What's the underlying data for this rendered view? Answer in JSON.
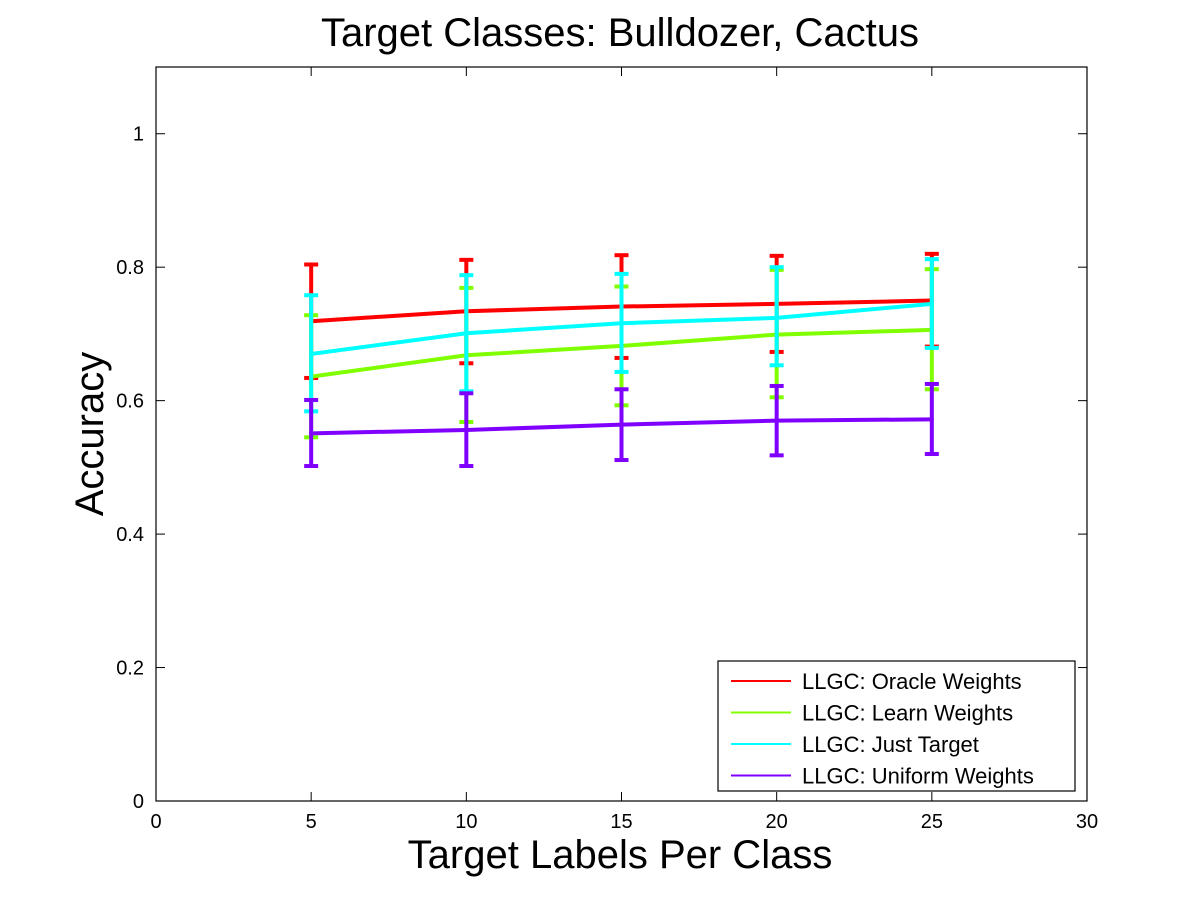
{
  "chart_data": {
    "type": "line",
    "title": "Target Classes: Bulldozer, Cactus",
    "xlabel": "Target Labels Per Class",
    "ylabel": "Accuracy",
    "xlim": [
      0,
      30
    ],
    "ylim": [
      0,
      1.1
    ],
    "xticks": [
      0,
      5,
      10,
      15,
      20,
      25,
      30
    ],
    "xtick_labels": [
      "0",
      "5",
      "10",
      "15",
      "20",
      "25",
      "30"
    ],
    "yticks": [
      0,
      0.2,
      0.4,
      0.6,
      0.8,
      1
    ],
    "ytick_labels": [
      "0",
      "0.2",
      "0.4",
      "0.6",
      "0.8",
      "1"
    ],
    "grid": false,
    "legend_position": "bottom-right",
    "x": [
      5,
      10,
      15,
      20,
      25
    ],
    "series": [
      {
        "name": "LLGC: Oracle Weights",
        "color": "#ff0000",
        "values": [
          0.719,
          0.734,
          0.741,
          0.745,
          0.75
        ],
        "err_low": [
          0.634,
          0.656,
          0.664,
          0.673,
          0.681
        ],
        "err_high": [
          0.804,
          0.811,
          0.818,
          0.817,
          0.82
        ]
      },
      {
        "name": "LLGC: Learn Weights",
        "color": "#80ff00",
        "values": [
          0.636,
          0.668,
          0.682,
          0.699,
          0.706
        ],
        "err_low": [
          0.545,
          0.568,
          0.593,
          0.605,
          0.617
        ],
        "err_high": [
          0.728,
          0.769,
          0.771,
          0.796,
          0.797
        ]
      },
      {
        "name": "LLGC: Just Target",
        "color": "#00ffff",
        "values": [
          0.67,
          0.701,
          0.716,
          0.724,
          0.745
        ],
        "err_low": [
          0.584,
          0.614,
          0.643,
          0.653,
          0.679
        ],
        "err_high": [
          0.758,
          0.788,
          0.79,
          0.8,
          0.812
        ]
      },
      {
        "name": "LLGC: Uniform Weights",
        "color": "#8000ff",
        "values": [
          0.551,
          0.556,
          0.564,
          0.57,
          0.572
        ],
        "err_low": [
          0.502,
          0.502,
          0.511,
          0.518,
          0.52
        ],
        "err_high": [
          0.601,
          0.611,
          0.617,
          0.622,
          0.625
        ]
      }
    ]
  }
}
